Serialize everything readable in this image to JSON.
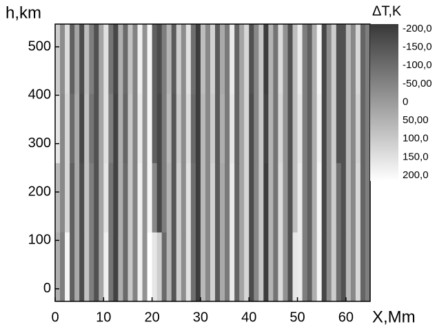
{
  "chart_data": {
    "type": "heatmap",
    "x_label": "X,Mm",
    "y_label": "h,km",
    "colorbar_label": "ΔT,K",
    "xlim": [
      0,
      65
    ],
    "xticks": [
      0,
      10,
      20,
      30,
      40,
      50,
      60
    ],
    "ylim": [
      -26,
      547
    ],
    "yticks": [
      0,
      100,
      200,
      300,
      400,
      500
    ],
    "colormap": [
      "#383838",
      "#ffffff"
    ],
    "zlim": [
      -200,
      200
    ],
    "zticks": [
      {
        "value": -200,
        "label": "-200,0"
      },
      {
        "value": -150,
        "label": "-150,0"
      },
      {
        "value": -100,
        "label": "-100,0"
      },
      {
        "value": -50,
        "label": "-50,00"
      },
      0,
      {
        "value": 50,
        "label": "50,00"
      },
      {
        "value": 100,
        "label": "100,0"
      },
      {
        "value": 150,
        "label": "150,0"
      },
      {
        "value": 200,
        "label": "200,0"
      }
    ],
    "z": [
      [
        40,
        -60,
        180,
        -120,
        30,
        -160,
        80,
        -60,
        -150,
        20,
        170,
        -80,
        -180,
        40,
        -100,
        90,
        -50,
        170,
        -20,
        200,
        150,
        100,
        -100,
        50,
        -140,
        100,
        -30,
        140,
        -90,
        -190,
        60,
        -40,
        110,
        -130,
        30,
        -70,
        160,
        -110,
        20,
        120,
        -160,
        -40,
        90,
        -190,
        50,
        -80,
        130,
        -20,
        -150,
        150,
        160,
        -60,
        -120,
        40,
        180,
        -170,
        -30,
        100,
        -90,
        -150,
        60,
        -40,
        120,
        -110,
        -60
      ],
      [
        60,
        -40,
        120,
        -120,
        30,
        -160,
        80,
        -60,
        -150,
        20,
        150,
        -80,
        -180,
        40,
        -100,
        90,
        -50,
        170,
        -20,
        180,
        -40,
        -170,
        -60,
        50,
        -140,
        100,
        -30,
        140,
        -90,
        -190,
        60,
        -40,
        110,
        -130,
        30,
        -70,
        160,
        -110,
        20,
        120,
        -160,
        -40,
        90,
        -190,
        50,
        -80,
        130,
        -20,
        -150,
        70,
        160,
        -60,
        -120,
        40,
        180,
        -170,
        -30,
        100,
        -90,
        -150,
        60,
        -40,
        120,
        -110,
        -60
      ],
      [
        150,
        -40,
        120,
        -100,
        30,
        -170,
        80,
        -80,
        -150,
        20,
        140,
        -60,
        -180,
        40,
        -110,
        90,
        -50,
        160,
        -20,
        180,
        -120,
        -170,
        -60,
        60,
        -140,
        90,
        -30,
        130,
        -100,
        -190,
        60,
        -40,
        100,
        -130,
        40,
        -70,
        150,
        -110,
        20,
        120,
        -160,
        -40,
        90,
        -180,
        50,
        -80,
        120,
        -20,
        -150,
        70,
        150,
        -60,
        -120,
        40,
        170,
        -170,
        -30,
        100,
        -150,
        -150,
        60,
        -40,
        110,
        -110,
        -60
      ],
      [
        100,
        -30,
        130,
        -120,
        20,
        -160,
        70,
        -60,
        -150,
        20,
        140,
        -80,
        -170,
        40,
        -100,
        80,
        -50,
        170,
        -20,
        180,
        -120,
        -160,
        -60,
        50,
        -130,
        100,
        -30,
        140,
        -90,
        -190,
        70,
        -40,
        110,
        -130,
        30,
        -70,
        160,
        -110,
        20,
        120,
        -150,
        -40,
        90,
        -190,
        50,
        -80,
        130,
        -20,
        -150,
        70,
        160,
        -60,
        -120,
        40,
        180,
        -170,
        -30,
        100,
        -150,
        -150,
        60,
        -40,
        120,
        -110,
        -60
      ]
    ]
  }
}
